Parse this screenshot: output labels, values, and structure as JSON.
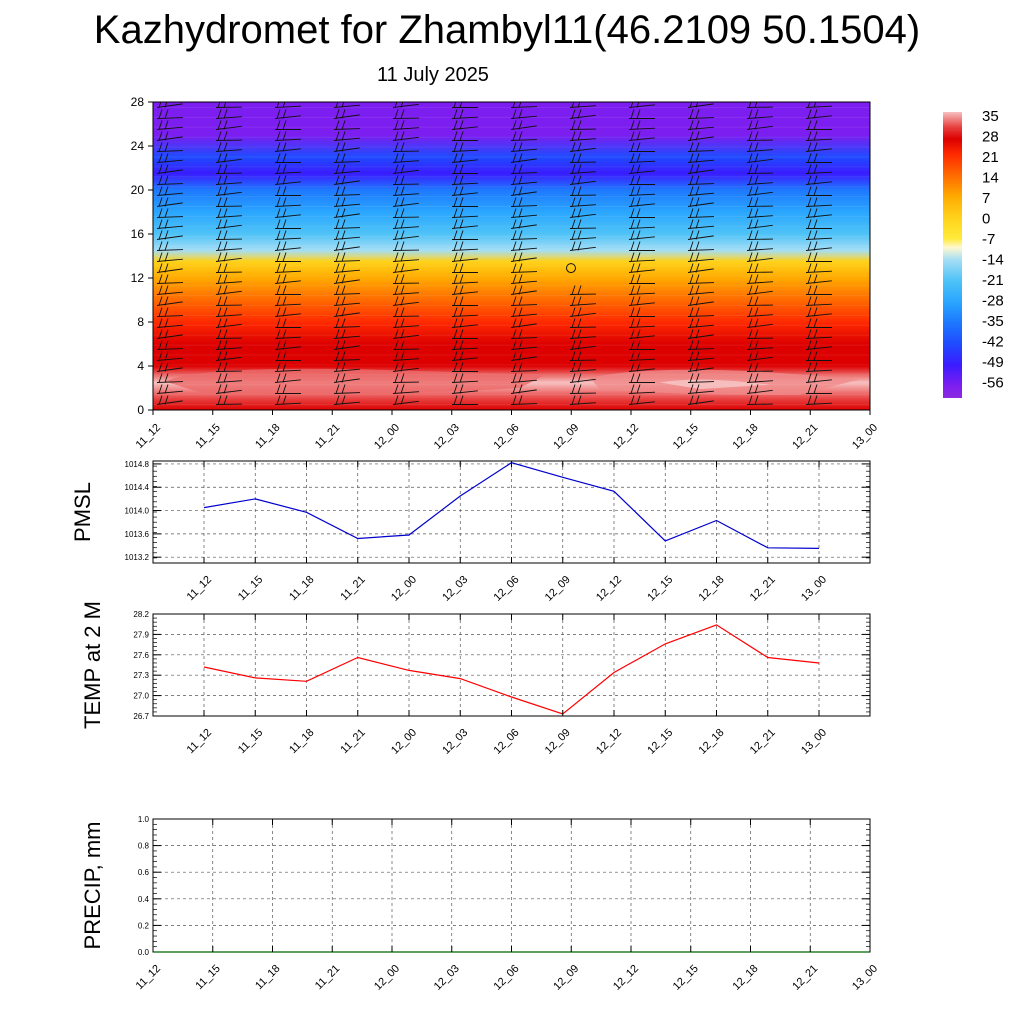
{
  "title": "Kazhydromet for Zhambyl11(46.2109 50.1504)",
  "subtitle": "11 July 2025",
  "time_labels": [
    "11_12",
    "11_15",
    "11_18",
    "11_21",
    "12_00",
    "12_03",
    "12_06",
    "12_09",
    "12_12",
    "12_15",
    "12_18",
    "12_21",
    "13_00"
  ],
  "colors": {
    "pmsl_line": "#0000cc",
    "temp_line": "#ff0000",
    "precip_line": "#006400"
  },
  "chart_data": [
    {
      "type": "heatmap",
      "ylim": [
        0,
        28
      ],
      "yticks": [
        "0",
        "4",
        "8",
        "12",
        "16",
        "20",
        "24",
        "28"
      ],
      "x": [
        "11_12",
        "11_15",
        "11_18",
        "11_21",
        "12_00",
        "12_03",
        "12_06",
        "12_09",
        "12_12",
        "12_15",
        "12_18",
        "12_21",
        "13_00"
      ],
      "vertical_profile_temperature": [
        {
          "y": 0,
          "v": 26
        },
        {
          "y": 1,
          "v": 28
        },
        {
          "y": 2.5,
          "v": 32
        },
        {
          "y": 4,
          "v": 26
        },
        {
          "y": 6,
          "v": 22
        },
        {
          "y": 8,
          "v": 18
        },
        {
          "y": 10,
          "v": 12
        },
        {
          "y": 12,
          "v": 4
        },
        {
          "y": 13.5,
          "v": -6
        },
        {
          "y": 14.5,
          "v": -14
        },
        {
          "y": 16,
          "v": -21
        },
        {
          "y": 18,
          "v": -28
        },
        {
          "y": 20,
          "v": -40
        },
        {
          "y": 21.5,
          "v": -52
        },
        {
          "y": 23,
          "v": -45
        },
        {
          "y": 25,
          "v": -56
        },
        {
          "y": 28,
          "v": -58
        }
      ],
      "colorbar_labels": [
        "35",
        "28",
        "21",
        "14",
        "7",
        "0",
        "-7",
        "-14",
        "-21",
        "-28",
        "-35",
        "-42",
        "-49",
        "-56"
      ]
    },
    {
      "type": "line",
      "ylabel": "PMSL",
      "ylim": [
        1013.1,
        1014.85
      ],
      "yticks": [
        "1013.2",
        "1013.6",
        "1014.0",
        "1014.4",
        "1014.8"
      ],
      "x": [
        "11_12",
        "11_15",
        "11_18",
        "11_21",
        "12_00",
        "12_03",
        "12_06",
        "12_09",
        "12_12",
        "12_15",
        "12_18",
        "12_21",
        "13_00"
      ],
      "values": [
        1014.05,
        1014.2,
        1013.97,
        1013.52,
        1013.58,
        1014.25,
        1014.82,
        1014.57,
        1014.33,
        1013.48,
        1013.83,
        1013.36,
        1013.35
      ]
    },
    {
      "type": "line",
      "ylabel": "TEMP at 2 M",
      "ylim": [
        26.7,
        28.2
      ],
      "yticks": [
        "26.7",
        "27.0",
        "27.3",
        "27.6",
        "27.9",
        "28.2"
      ],
      "x": [
        "11_12",
        "11_15",
        "11_18",
        "11_21",
        "12_00",
        "12_03",
        "12_06",
        "12_09",
        "12_12",
        "12_15",
        "12_18",
        "12_21",
        "13_00"
      ],
      "values": [
        27.42,
        27.26,
        27.21,
        27.56,
        27.37,
        27.25,
        26.98,
        26.73,
        27.34,
        27.76,
        28.04,
        27.56,
        27.48
      ]
    },
    {
      "type": "line",
      "ylabel": "PRECIP, mm",
      "ylim": [
        0.0,
        1.0
      ],
      "yticks": [
        "0.0",
        "0.2",
        "0.4",
        "0.6",
        "0.8",
        "1.0"
      ],
      "x": [
        "11_12",
        "11_15",
        "11_18",
        "11_21",
        "12_00",
        "12_03",
        "12_06",
        "12_09",
        "12_12",
        "12_15",
        "12_18",
        "12_21",
        "13_00"
      ],
      "values": [
        0,
        0,
        0,
        0,
        0,
        0,
        0,
        0,
        0,
        0,
        0,
        0,
        0
      ]
    }
  ]
}
